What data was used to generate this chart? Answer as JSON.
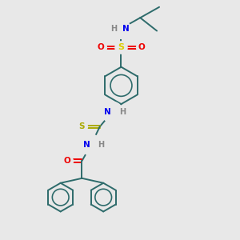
{
  "bg_color": "#e8e8e8",
  "bond_color": "#2d6b6b",
  "N_color": "#0000ee",
  "O_color": "#ee0000",
  "S_sulfo_color": "#ddcc00",
  "S_thio_color": "#aaaa00",
  "H_color": "#888888",
  "line_width": 1.4,
  "fig_size": [
    3.0,
    3.0
  ],
  "dpi": 100,
  "xlim": [
    0,
    10
  ],
  "ylim": [
    0,
    10
  ],
  "ring_bond_color": "#2d6b6b"
}
